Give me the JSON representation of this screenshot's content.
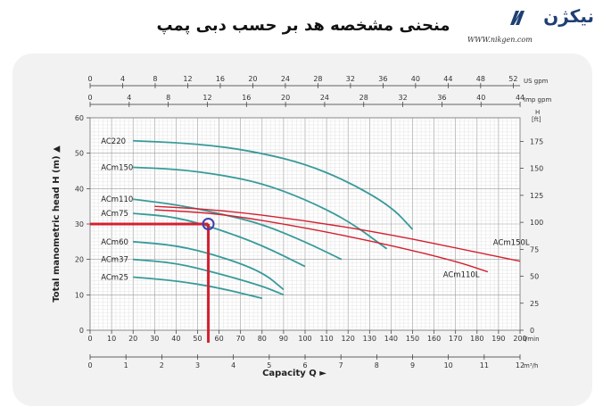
{
  "header": {
    "title": "منحنی مشخصه هد بر حسب دبی پمپ",
    "brand_name": "نیکژن",
    "website": "WWW.nikgen.com"
  },
  "colors": {
    "accent_red": "#d32030",
    "pump_curve": "#3a9a9a",
    "marker": "#3f3fb0",
    "brand": "#1f3f73"
  },
  "chart_data": {
    "type": "line",
    "title": "",
    "xlabel": "Capacity Q",
    "ylabel": "Total manometric head H (m)",
    "ylabel_right": "ft",
    "xlim": [
      0,
      200
    ],
    "ylim": [
      0,
      60
    ],
    "x_ticks": [
      0,
      10,
      20,
      30,
      40,
      50,
      60,
      70,
      80,
      90,
      100,
      110,
      120,
      130,
      140,
      150,
      160,
      170,
      180,
      190,
      200
    ],
    "x_unit": "l/min",
    "y_ticks": [
      0,
      10,
      20,
      30,
      40,
      50,
      60
    ],
    "ft_ticks": [
      0,
      25,
      50,
      75,
      100,
      125,
      150,
      175
    ],
    "top_axes": [
      {
        "unit": "US gpm",
        "ticks": [
          0,
          4,
          8,
          12,
          16,
          20,
          24,
          28,
          32,
          36,
          40,
          44,
          48,
          52
        ],
        "lmin_per_unit": 3.785
      },
      {
        "unit": "Imp gpm",
        "ticks": [
          0,
          4,
          8,
          12,
          16,
          20,
          24,
          28,
          32,
          36,
          40,
          44
        ],
        "lmin_per_unit": 4.546
      }
    ],
    "bottom_axis": {
      "unit": "m³/h",
      "ticks": [
        0,
        1,
        2,
        3,
        4,
        5,
        6,
        7,
        8,
        9,
        10,
        11,
        12
      ],
      "lmin_per_unit": 16.667
    },
    "grid": true,
    "series": [
      {
        "name": "AC220",
        "points": [
          [
            20,
            53.5
          ],
          [
            40,
            53
          ],
          [
            60,
            52
          ],
          [
            80,
            50
          ],
          [
            100,
            47
          ],
          [
            120,
            42
          ],
          [
            140,
            35
          ],
          [
            150,
            28.5
          ]
        ]
      },
      {
        "name": "ACm150",
        "points": [
          [
            20,
            46
          ],
          [
            40,
            45.5
          ],
          [
            60,
            44
          ],
          [
            80,
            41.5
          ],
          [
            100,
            37
          ],
          [
            120,
            31
          ],
          [
            138,
            23
          ]
        ]
      },
      {
        "name": "ACm110",
        "points": [
          [
            20,
            37
          ],
          [
            40,
            35.5
          ],
          [
            60,
            33
          ],
          [
            80,
            30
          ],
          [
            100,
            25
          ],
          [
            117,
            20
          ]
        ]
      },
      {
        "name": "ACm75",
        "points": [
          [
            20,
            33
          ],
          [
            40,
            32
          ],
          [
            60,
            28.5
          ],
          [
            80,
            24
          ],
          [
            100,
            18
          ]
        ]
      },
      {
        "name": "ACm60",
        "points": [
          [
            20,
            25
          ],
          [
            40,
            24
          ],
          [
            60,
            21
          ],
          [
            80,
            16.5
          ],
          [
            90,
            11.5
          ]
        ]
      },
      {
        "name": "ACm37",
        "points": [
          [
            20,
            20
          ],
          [
            40,
            19
          ],
          [
            60,
            16
          ],
          [
            80,
            12.5
          ],
          [
            90,
            10
          ]
        ]
      },
      {
        "name": "ACm25",
        "points": [
          [
            20,
            15
          ],
          [
            40,
            14
          ],
          [
            60,
            12
          ],
          [
            80,
            9
          ]
        ]
      },
      {
        "name": "ACm150L",
        "points": [
          [
            30,
            35
          ],
          [
            60,
            34
          ],
          [
            100,
            31
          ],
          [
            140,
            27
          ],
          [
            180,
            22
          ],
          [
            200,
            19.5
          ]
        ]
      },
      {
        "name": "ACm110L",
        "points": [
          [
            30,
            34
          ],
          [
            60,
            33
          ],
          [
            100,
            29
          ],
          [
            140,
            24
          ],
          [
            170,
            19.5
          ],
          [
            185,
            16.5
          ]
        ]
      }
    ],
    "operating_point": {
      "x": 55,
      "y": 30
    }
  }
}
